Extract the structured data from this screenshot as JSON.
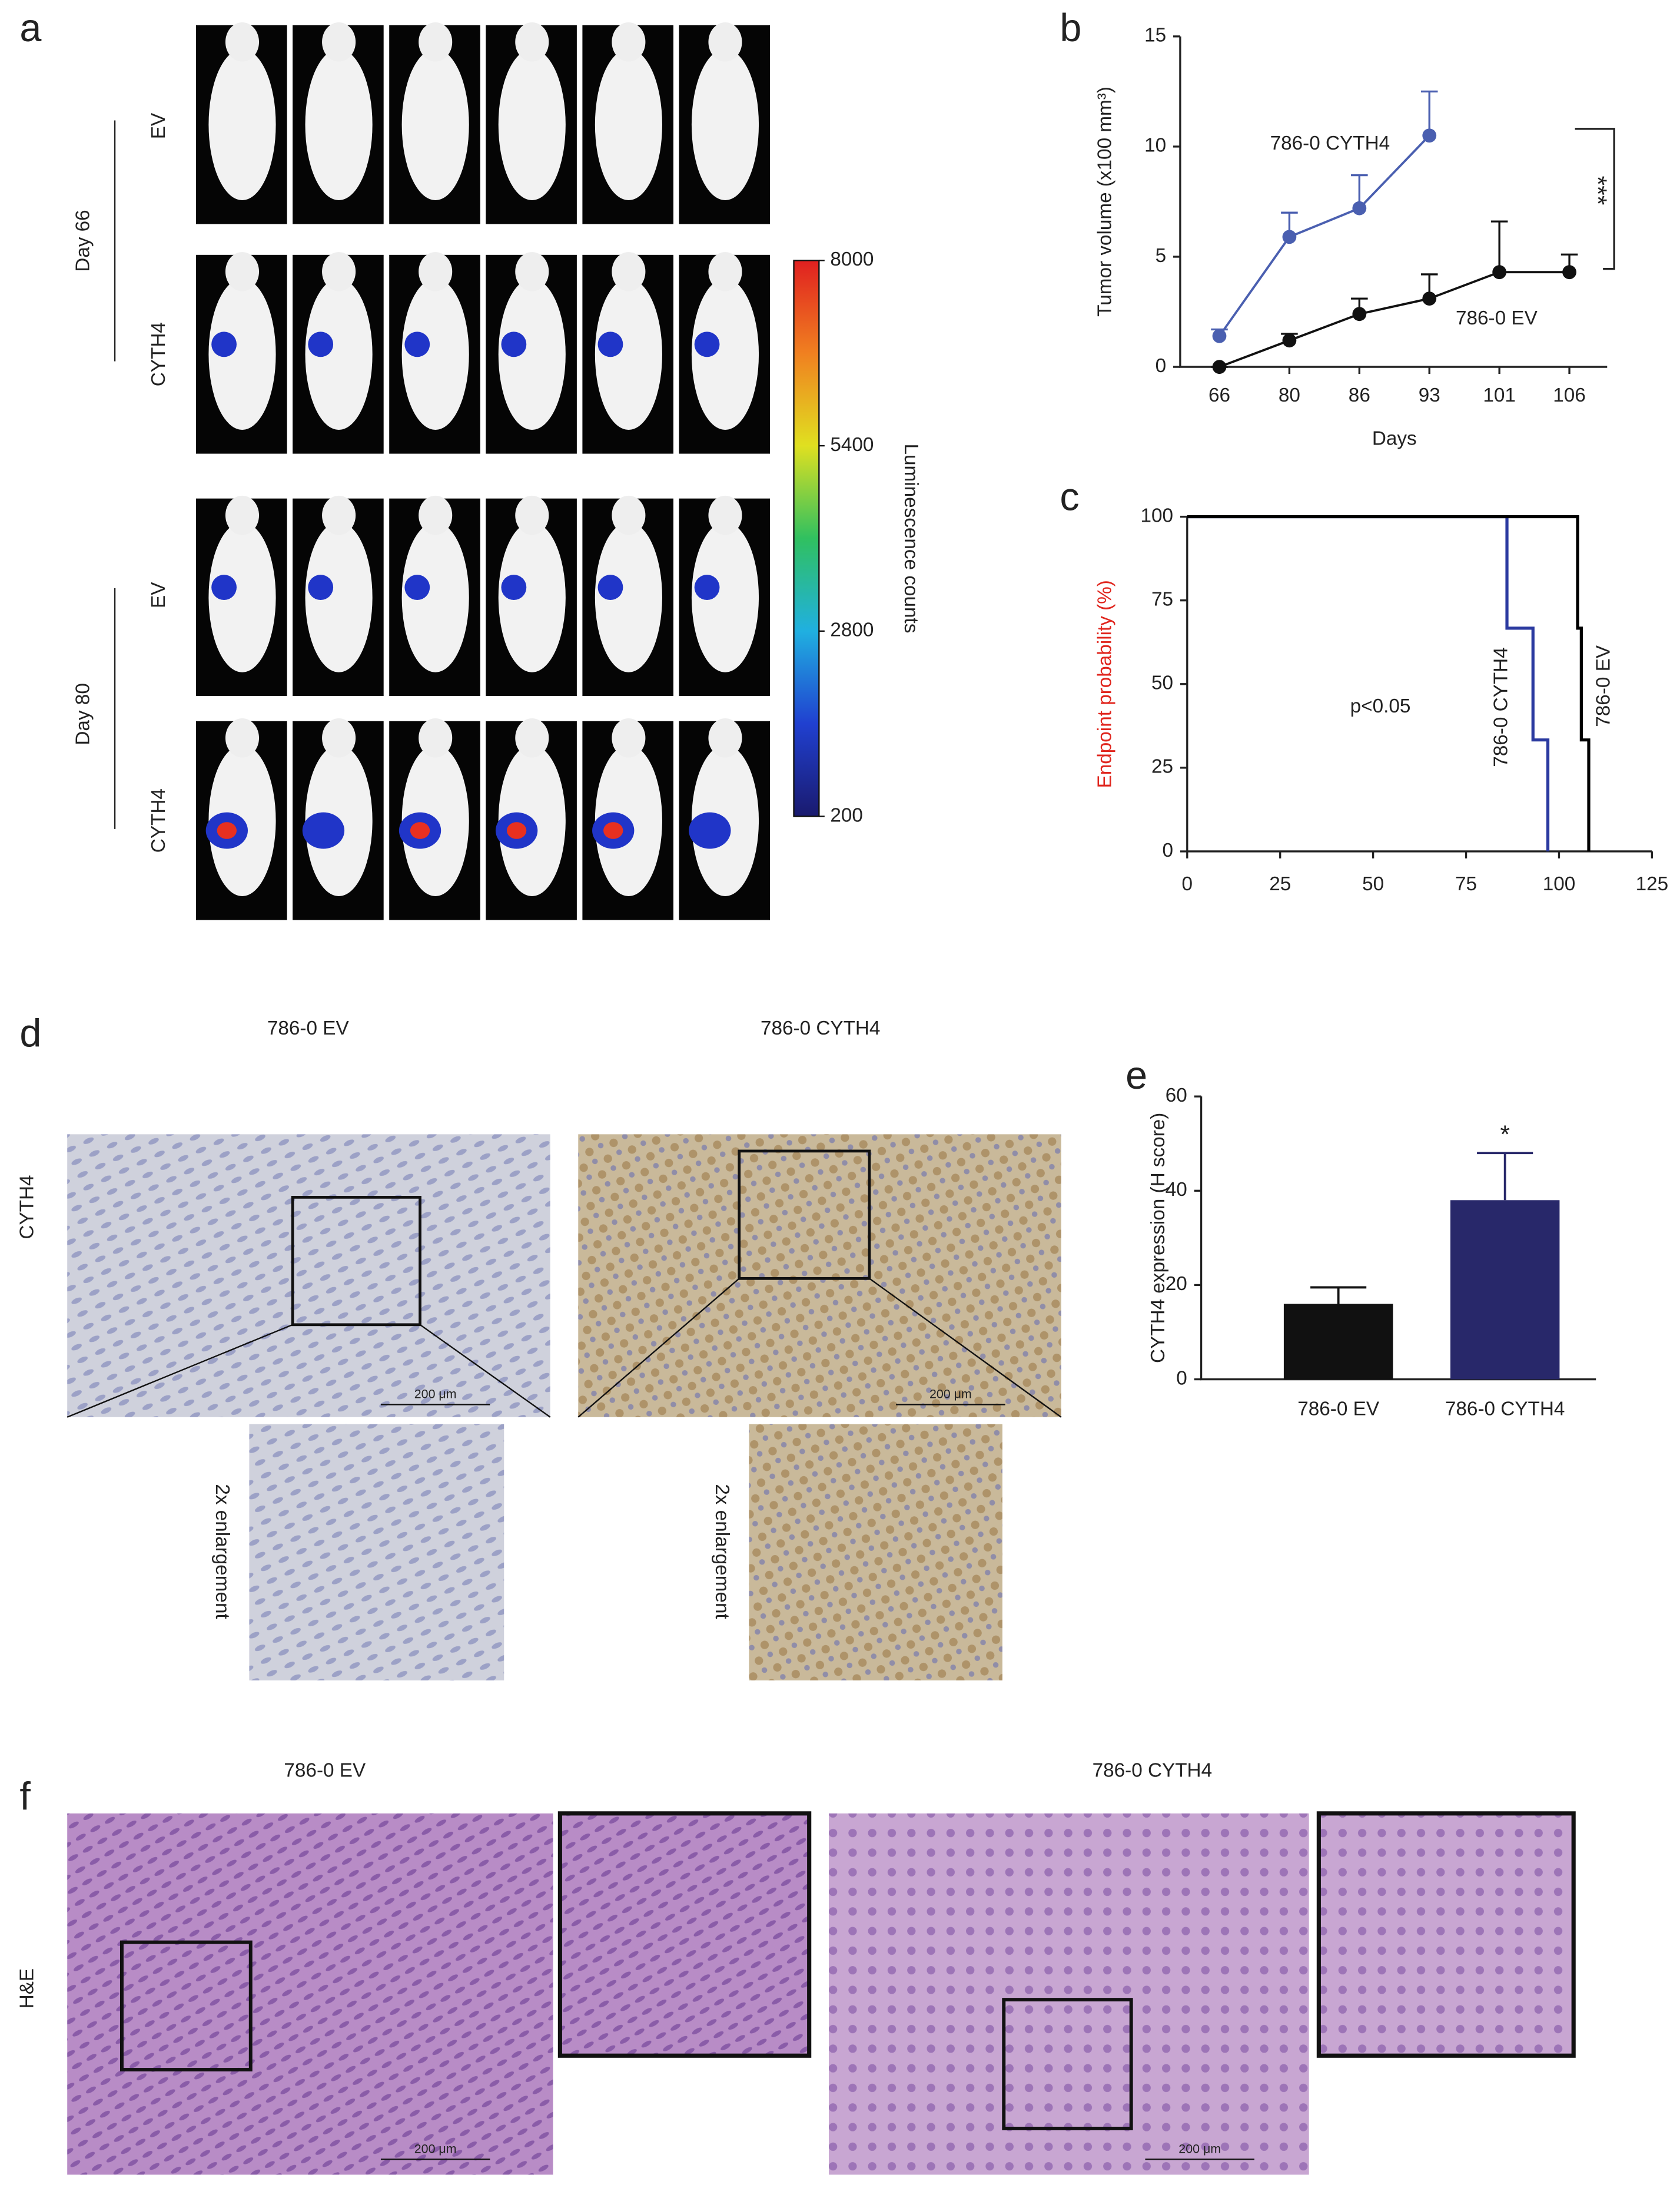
{
  "figure": {
    "panel_labels": [
      "a",
      "b",
      "c",
      "d",
      "e",
      "f"
    ],
    "a": {
      "row_labels": [
        "EV",
        "CYTH4",
        "EV",
        "CYTH4"
      ],
      "day_labels": [
        "Day 66",
        "Day 80"
      ]
    },
    "d": {
      "titles": [
        "786-0 EV",
        "786-0 CYTH4"
      ],
      "row_label": "CYTH4",
      "inset_labels": [
        "2x enlargement",
        "2x enlargement"
      ],
      "scale_bars": [
        "200 μm",
        "200 μm"
      ]
    },
    "f": {
      "titles": [
        "786-0 EV",
        "786-0 CYTH4"
      ],
      "row_label": "H&E",
      "scale_bars": [
        "200 μm",
        "200 μm"
      ]
    }
  },
  "chart_data": [
    {
      "type": "colorbar",
      "ylabel": "Luminescence counts",
      "ylim": [
        200,
        8000
      ],
      "yticks": [
        8000,
        5400,
        2800,
        200
      ],
      "colors": [
        "#1a1a6e",
        "#2040d0",
        "#20b0e0",
        "#30c060",
        "#e0e020",
        "#f08020",
        "#e02020"
      ]
    },
    {
      "type": "line",
      "xlabel": "Days",
      "ylabel": "Tumor volume (x100 mm³)",
      "categories": [
        "66",
        "80",
        "86",
        "93",
        "101",
        "106"
      ],
      "series": [
        {
          "name": "786-0 CYTH4",
          "color": "#4a5fb0",
          "values": [
            1.4,
            5.9,
            7.2,
            10.5,
            null,
            null
          ],
          "errors": [
            0.3,
            1.1,
            1.5,
            2.0,
            null,
            null
          ]
        },
        {
          "name": "786-0 EV",
          "color": "#111111",
          "values": [
            0,
            1.2,
            2.4,
            3.1,
            4.3,
            4.3
          ],
          "errors": [
            0,
            0.3,
            0.7,
            1.1,
            2.3,
            0.8
          ]
        }
      ],
      "ylim": [
        0,
        15
      ],
      "yticks": [
        0,
        5,
        10,
        15
      ],
      "annotations": [
        {
          "text": "***"
        }
      ]
    },
    {
      "type": "step",
      "ylabel": "Endpoint probability  (%)",
      "ylabel_color": "#e0261e",
      "series": [
        {
          "name": "786-0 CYTH4",
          "color": "#2b3aa0",
          "x": [
            0,
            86,
            86,
            93,
            93,
            97,
            97
          ],
          "values": [
            100,
            100,
            66.7,
            66.7,
            33.3,
            33.3,
            0
          ]
        },
        {
          "name": "786-0 EV",
          "color": "#000000",
          "x": [
            0,
            105,
            105,
            106,
            106,
            108,
            108
          ],
          "values": [
            100,
            100,
            66.7,
            66.7,
            33.3,
            33.3,
            0
          ]
        }
      ],
      "xlim": [
        0,
        125
      ],
      "xticks": [
        0,
        25,
        50,
        75,
        100,
        125
      ],
      "ylim": [
        0,
        100
      ],
      "yticks": [
        0,
        25,
        50,
        75,
        100
      ],
      "annotations": [
        {
          "text": "p<0.05"
        }
      ]
    },
    {
      "type": "bar",
      "ylabel": "CYTH4 expression (H score)",
      "categories": [
        "786-0 EV",
        "786-0 CYTH4"
      ],
      "values": [
        16,
        38
      ],
      "errors": [
        3.5,
        10
      ],
      "colors": [
        "#111111",
        "#28286a"
      ],
      "ylim": [
        0,
        60
      ],
      "yticks": [
        0,
        20,
        40,
        60
      ],
      "annotations": [
        {
          "text": "*"
        }
      ]
    }
  ]
}
